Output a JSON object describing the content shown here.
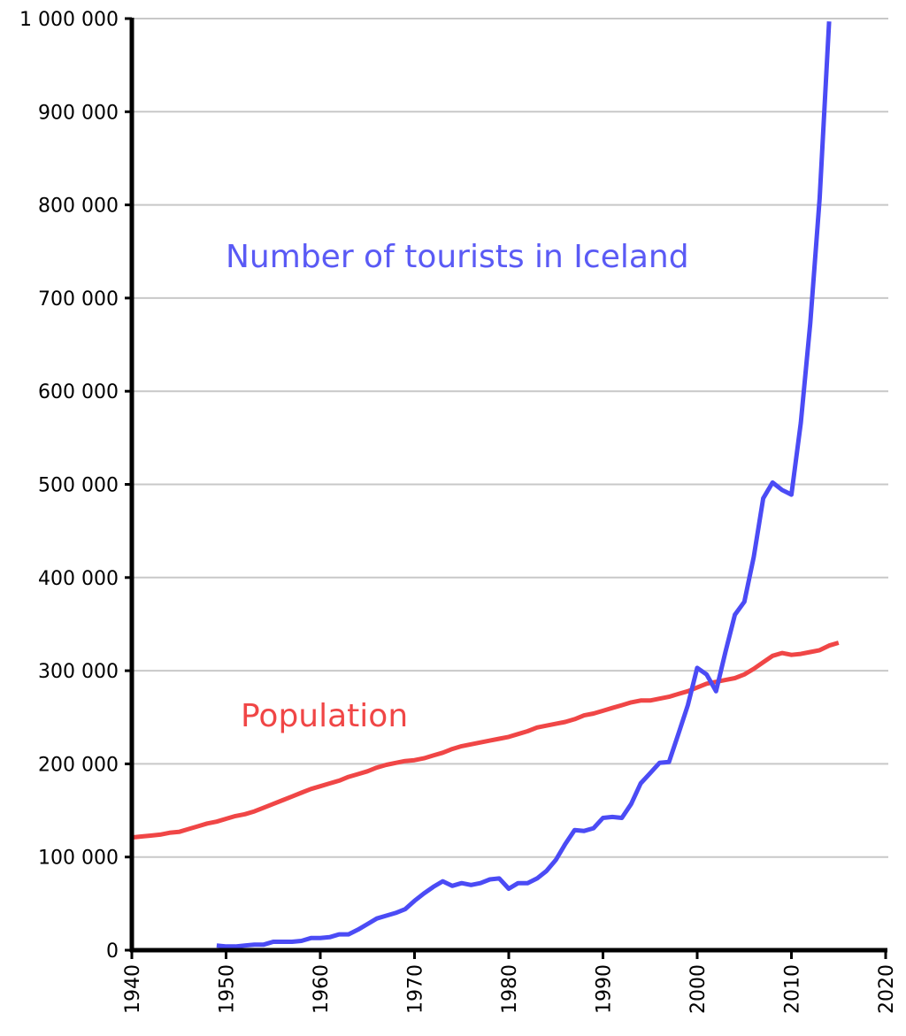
{
  "chart_data": {
    "type": "line",
    "xlim": [
      1940,
      2020
    ],
    "ylim": [
      0,
      1000000
    ],
    "x_ticks": [
      "1940",
      "1950",
      "1960",
      "1970",
      "1980",
      "1990",
      "2000",
      "2010",
      "2020"
    ],
    "y_ticks": [
      "0",
      "100 000",
      "200 000",
      "300 000",
      "400 000",
      "500 000",
      "600 000",
      "700 000",
      "800 000",
      "900 000",
      "1 000 000"
    ],
    "grid": true,
    "series": [
      {
        "name": "Population",
        "color": "#f04646",
        "points": [
          [
            1940,
            121000
          ],
          [
            1941,
            122000
          ],
          [
            1942,
            123000
          ],
          [
            1943,
            124000
          ],
          [
            1944,
            126000
          ],
          [
            1945,
            127000
          ],
          [
            1946,
            130000
          ],
          [
            1947,
            133000
          ],
          [
            1948,
            136000
          ],
          [
            1949,
            138000
          ],
          [
            1950,
            141000
          ],
          [
            1951,
            144000
          ],
          [
            1952,
            146000
          ],
          [
            1953,
            149000
          ],
          [
            1954,
            153000
          ],
          [
            1955,
            157000
          ],
          [
            1956,
            161000
          ],
          [
            1957,
            165000
          ],
          [
            1958,
            169000
          ],
          [
            1959,
            173000
          ],
          [
            1960,
            176000
          ],
          [
            1961,
            179000
          ],
          [
            1962,
            182000
          ],
          [
            1963,
            186000
          ],
          [
            1964,
            189000
          ],
          [
            1965,
            192000
          ],
          [
            1966,
            196000
          ],
          [
            1967,
            199000
          ],
          [
            1968,
            201000
          ],
          [
            1969,
            203000
          ],
          [
            1970,
            204000
          ],
          [
            1971,
            206000
          ],
          [
            1972,
            209000
          ],
          [
            1973,
            212000
          ],
          [
            1974,
            216000
          ],
          [
            1975,
            219000
          ],
          [
            1976,
            221000
          ],
          [
            1977,
            223000
          ],
          [
            1978,
            225000
          ],
          [
            1979,
            227000
          ],
          [
            1980,
            229000
          ],
          [
            1981,
            232000
          ],
          [
            1982,
            235000
          ],
          [
            1983,
            239000
          ],
          [
            1984,
            241000
          ],
          [
            1985,
            243000
          ],
          [
            1986,
            245000
          ],
          [
            1987,
            248000
          ],
          [
            1988,
            252000
          ],
          [
            1989,
            254000
          ],
          [
            1990,
            257000
          ],
          [
            1991,
            260000
          ],
          [
            1992,
            263000
          ],
          [
            1993,
            266000
          ],
          [
            1994,
            268000
          ],
          [
            1995,
            268000
          ],
          [
            1996,
            270000
          ],
          [
            1997,
            272000
          ],
          [
            1998,
            275000
          ],
          [
            1999,
            278000
          ],
          [
            2000,
            282000
          ],
          [
            2001,
            286000
          ],
          [
            2002,
            288000
          ],
          [
            2003,
            290000
          ],
          [
            2004,
            292000
          ],
          [
            2005,
            296000
          ],
          [
            2006,
            302000
          ],
          [
            2007,
            309000
          ],
          [
            2008,
            316000
          ],
          [
            2009,
            319000
          ],
          [
            2010,
            317000
          ],
          [
            2011,
            318000
          ],
          [
            2012,
            320000
          ],
          [
            2013,
            322000
          ],
          [
            2014,
            327000
          ],
          [
            2015,
            330000
          ]
        ]
      },
      {
        "name": "Number of tourists in Iceland",
        "color": "#4b4bf5",
        "points": [
          [
            1949,
            5000
          ],
          [
            1950,
            4000
          ],
          [
            1951,
            4000
          ],
          [
            1952,
            5000
          ],
          [
            1953,
            6000
          ],
          [
            1954,
            6000
          ],
          [
            1955,
            9000
          ],
          [
            1956,
            9000
          ],
          [
            1957,
            9000
          ],
          [
            1958,
            10000
          ],
          [
            1959,
            13000
          ],
          [
            1960,
            13000
          ],
          [
            1961,
            14000
          ],
          [
            1962,
            17000
          ],
          [
            1963,
            17000
          ],
          [
            1964,
            22000
          ],
          [
            1965,
            28000
          ],
          [
            1966,
            34000
          ],
          [
            1967,
            37000
          ],
          [
            1968,
            40000
          ],
          [
            1969,
            44000
          ],
          [
            1970,
            53000
          ],
          [
            1971,
            61000
          ],
          [
            1972,
            68000
          ],
          [
            1973,
            74000
          ],
          [
            1974,
            69000
          ],
          [
            1975,
            72000
          ],
          [
            1976,
            70000
          ],
          [
            1977,
            72000
          ],
          [
            1978,
            76000
          ],
          [
            1979,
            77000
          ],
          [
            1980,
            66000
          ],
          [
            1981,
            72000
          ],
          [
            1982,
            72000
          ],
          [
            1983,
            77000
          ],
          [
            1984,
            85000
          ],
          [
            1985,
            97000
          ],
          [
            1986,
            114000
          ],
          [
            1987,
            129000
          ],
          [
            1988,
            128000
          ],
          [
            1989,
            131000
          ],
          [
            1990,
            142000
          ],
          [
            1991,
            143000
          ],
          [
            1992,
            142000
          ],
          [
            1993,
            157000
          ],
          [
            1994,
            179000
          ],
          [
            1995,
            190000
          ],
          [
            1996,
            201000
          ],
          [
            1997,
            202000
          ],
          [
            1998,
            232000
          ],
          [
            1999,
            263000
          ],
          [
            2000,
            303000
          ],
          [
            2001,
            296000
          ],
          [
            2002,
            278000
          ],
          [
            2003,
            320000
          ],
          [
            2004,
            360000
          ],
          [
            2005,
            374000
          ],
          [
            2006,
            422000
          ],
          [
            2007,
            485000
          ],
          [
            2008,
            502000
          ],
          [
            2009,
            494000
          ],
          [
            2010,
            489000
          ],
          [
            2011,
            566000
          ],
          [
            2012,
            673000
          ],
          [
            2013,
            807000
          ],
          [
            2014,
            997000
          ]
        ]
      }
    ]
  },
  "labels": {
    "tourists": "Number of tourists in Iceland",
    "population": "Population"
  }
}
